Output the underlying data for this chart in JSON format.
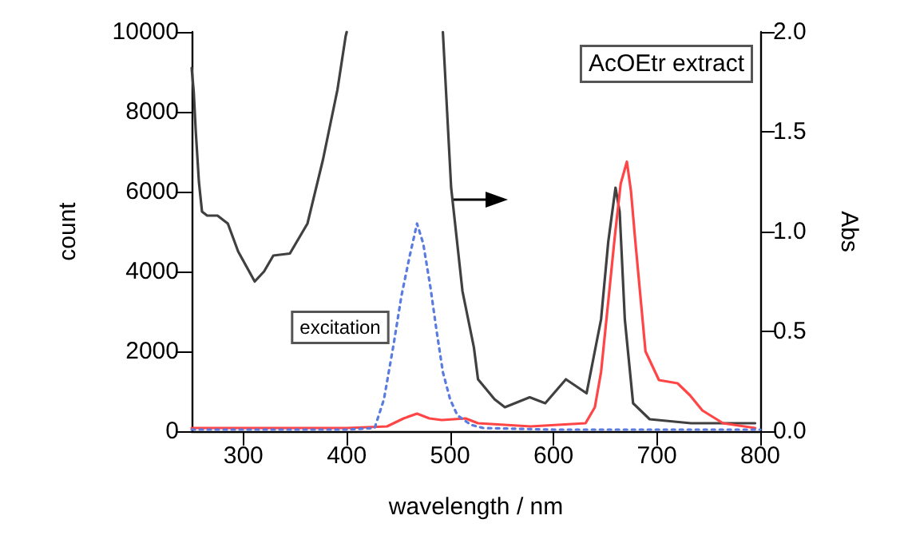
{
  "chart_data": {
    "type": "line",
    "xlabel": "wavelength / nm",
    "ylabel": "count",
    "y2label": "Abs",
    "xlim": [
      250,
      800
    ],
    "xticks": [
      300,
      400,
      500,
      600,
      700,
      800
    ],
    "ylim": [
      0,
      10000
    ],
    "yticks": [
      0,
      2000,
      4000,
      6000,
      8000,
      10000
    ],
    "y2lim": [
      0,
      2.0
    ],
    "y2ticks": [
      {
        "value": 0,
        "label": "0.0"
      },
      {
        "value": 0.5,
        "label": "0.5"
      },
      {
        "value": 1.0,
        "label": "1.0"
      },
      {
        "value": 1.5,
        "label": "1.5"
      },
      {
        "value": 2.0,
        "label": "2.0"
      }
    ],
    "grid": false,
    "marker": "none",
    "annotations": [
      "AcOEtr extract",
      "excitation"
    ],
    "series": [
      {
        "color": "#404040",
        "axis": "y2",
        "line_style": "solid",
        "x": [
          250,
          252,
          254,
          257,
          260,
          265,
          275,
          285,
          295,
          311,
          320,
          329,
          345,
          362,
          377,
          391,
          399,
          400,
          450,
          493,
          501,
          512,
          523,
          527,
          543,
          553,
          577,
          592,
          612,
          632,
          646,
          653,
          660,
          664,
          669,
          677,
          693,
          733,
          795
        ],
        "values": [
          1.82,
          1.7,
          1.5,
          1.25,
          1.1,
          1.08,
          1.08,
          1.04,
          0.9,
          0.75,
          0.8,
          0.88,
          0.89,
          1.04,
          1.36,
          1.71,
          1.98,
          2.0,
          null,
          2.0,
          1.22,
          0.7,
          0.42,
          0.26,
          0.16,
          0.12,
          0.17,
          0.14,
          0.26,
          0.19,
          0.56,
          0.95,
          1.22,
          1.1,
          0.56,
          0.14,
          0.06,
          0.04,
          0.04
        ]
      },
      {
        "color": "#ff4545",
        "axis": "y",
        "line_style": "solid",
        "x": [
          250,
          300,
          400,
          439,
          455,
          468,
          480,
          492,
          515,
          527,
          578,
          631,
          640,
          646,
          652,
          659,
          665,
          671,
          675,
          679,
          689,
          702,
          720,
          732,
          744,
          764,
          795
        ],
        "values": [
          80,
          80,
          80,
          120,
          320,
          440,
          320,
          280,
          320,
          200,
          120,
          200,
          600,
          1480,
          3000,
          4800,
          6200,
          6750,
          6000,
          4800,
          2000,
          1280,
          1200,
          900,
          520,
          200,
          80
        ]
      },
      {
        "color": "#5a7be0",
        "axis": "y",
        "line_style": "dotted",
        "x": [
          250,
          400,
          427,
          436,
          445,
          453,
          461,
          468,
          474,
          481,
          487,
          493,
          500,
          507,
          520,
          532,
          600,
          800
        ],
        "values": [
          40,
          40,
          80,
          800,
          2120,
          3400,
          4400,
          5200,
          4700,
          3600,
          2500,
          1480,
          800,
          400,
          160,
          80,
          40,
          40
        ]
      }
    ]
  }
}
